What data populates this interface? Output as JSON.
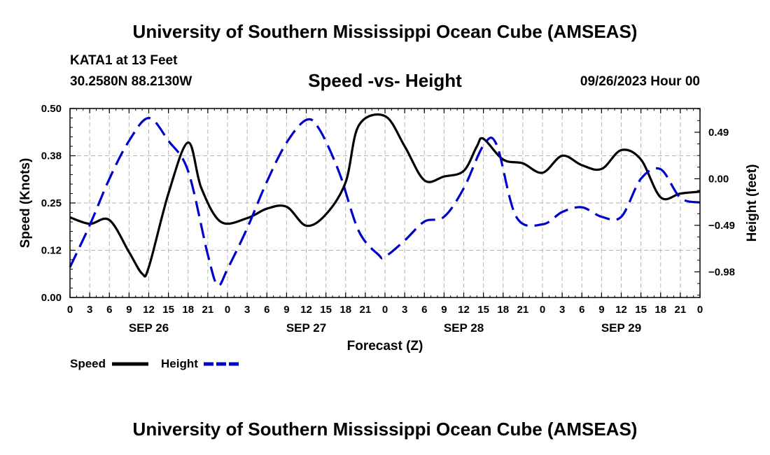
{
  "page": {
    "title": "University of Southern Mississippi Ocean Cube (AMSEAS)",
    "footer_title": "University of Southern Mississippi Ocean Cube (AMSEAS)",
    "station": "KATA1 at 13 Feet",
    "coordinates": "30.2580N   88.2130W",
    "subtitle": "Speed -vs- Height",
    "datestamp": "09/26/2023 Hour 00"
  },
  "chart_data": {
    "type": "line",
    "xlabel": "Forecast (Z)",
    "ylabel_left": "Speed (Knots)",
    "ylabel_right": "Height (feet)",
    "x_range_hours": [
      0,
      96
    ],
    "x_tick_labels": [
      "0",
      "3",
      "6",
      "9",
      "12",
      "15",
      "18",
      "21",
      "0",
      "3",
      "6",
      "9",
      "12",
      "15",
      "18",
      "21",
      "0",
      "3",
      "6",
      "9",
      "12",
      "15",
      "18",
      "21",
      "0",
      "3",
      "6",
      "9",
      "12",
      "15",
      "18",
      "21",
      "0"
    ],
    "day_labels": [
      {
        "label": "SEP 26",
        "hour": 12
      },
      {
        "label": "SEP 27",
        "hour": 36
      },
      {
        "label": "SEP 28",
        "hour": 60
      },
      {
        "label": "SEP 29",
        "hour": 84
      }
    ],
    "left_axis": {
      "range": [
        0,
        0.5
      ],
      "ticks": [
        0.0,
        0.125,
        0.25,
        0.375,
        0.5
      ],
      "tick_labels": [
        "0.00",
        "0.12",
        "0.25",
        "0.38",
        "0.50"
      ]
    },
    "right_axis": {
      "range": [
        -1.25,
        0.74
      ],
      "ticks": [
        -0.98,
        -0.49,
        0.0,
        0.49
      ],
      "tick_labels": [
        "−0.98",
        "−0.49",
        "0.00",
        "0.49"
      ]
    },
    "grid": true,
    "legend": [
      {
        "name": "Speed",
        "color": "#000000",
        "style": "solid"
      },
      {
        "name": "Height",
        "color": "#0000cc",
        "style": "dashed"
      }
    ],
    "series": [
      {
        "name": "Speed",
        "axis": "left",
        "color": "#000000",
        "style": "solid",
        "x": [
          0,
          3,
          6,
          9,
          11,
          12,
          15,
          18,
          20,
          23,
          27,
          30,
          33,
          36,
          39,
          42,
          44,
          48,
          51,
          54,
          57,
          60,
          62,
          63,
          66,
          69,
          72,
          75,
          78,
          81,
          84,
          87,
          90,
          93,
          96
        ],
        "y": [
          0.212,
          0.195,
          0.205,
          0.12,
          0.063,
          0.08,
          0.275,
          0.41,
          0.29,
          0.2,
          0.21,
          0.235,
          0.24,
          0.19,
          0.22,
          0.305,
          0.455,
          0.48,
          0.4,
          0.31,
          0.32,
          0.335,
          0.4,
          0.42,
          0.365,
          0.355,
          0.33,
          0.375,
          0.35,
          0.34,
          0.39,
          0.365,
          0.265,
          0.275,
          0.28
        ]
      },
      {
        "name": "Height",
        "axis": "right",
        "color": "#0000cc",
        "style": "dashed",
        "x": [
          0,
          3,
          6,
          9,
          12,
          15,
          18,
          21,
          22.5,
          24,
          27,
          30,
          33,
          36,
          38,
          41,
          44,
          47,
          48,
          51,
          54,
          57,
          60,
          63,
          65,
          68,
          72,
          75,
          78,
          81,
          84,
          87,
          90,
          93,
          96
        ],
        "y": [
          -0.93,
          -0.49,
          0.0,
          0.4,
          0.64,
          0.4,
          0.08,
          -0.8,
          -1.12,
          -0.95,
          -0.52,
          -0.03,
          0.38,
          0.62,
          0.52,
          0.07,
          -0.55,
          -0.8,
          -0.82,
          -0.65,
          -0.45,
          -0.4,
          -0.1,
          0.35,
          0.36,
          -0.4,
          -0.48,
          -0.35,
          -0.3,
          -0.4,
          -0.4,
          0.0,
          0.1,
          -0.2,
          -0.25
        ]
      }
    ]
  }
}
